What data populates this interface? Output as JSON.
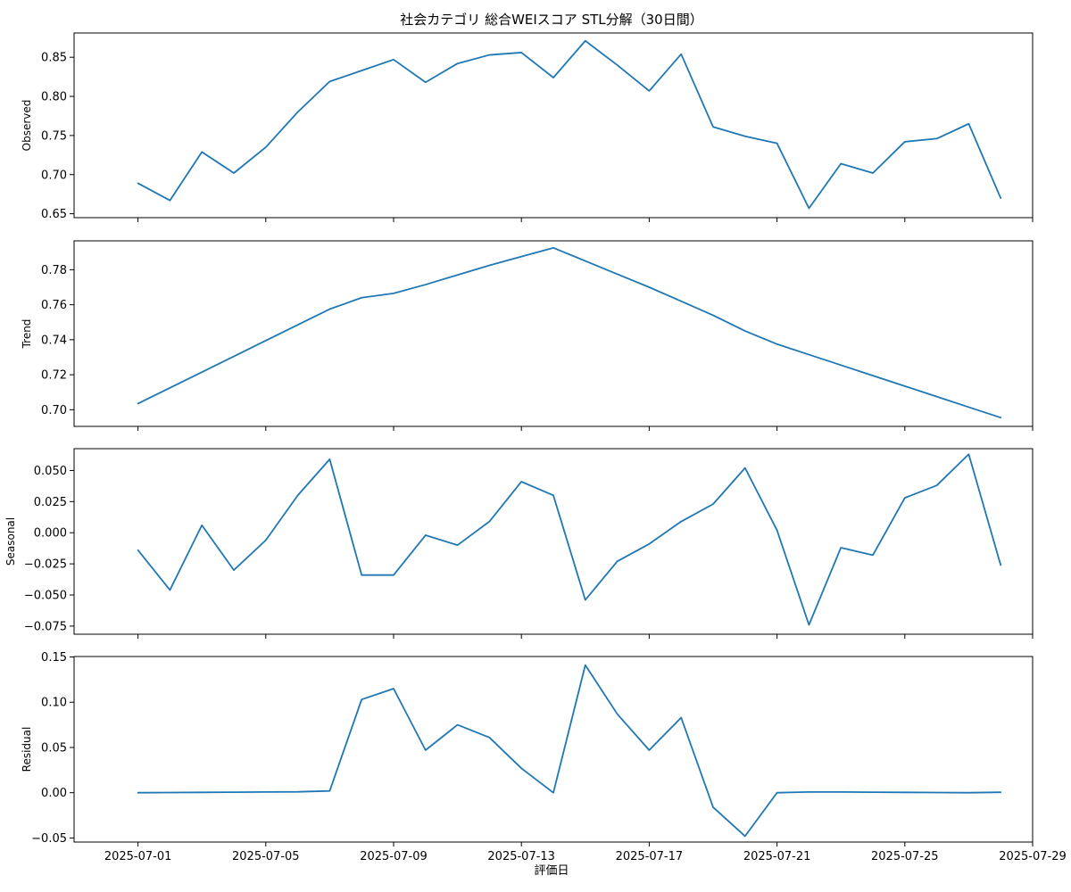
{
  "chart_data": {
    "type": "line",
    "title": "社会カテゴリ 総合WEIスコア STL分解（30日間）",
    "xlabel": "評価日",
    "x_tick_labels": [
      "2025-07-01",
      "2025-07-05",
      "2025-07-09",
      "2025-07-13",
      "2025-07-17",
      "2025-07-21",
      "2025-07-25",
      "2025-07-29"
    ],
    "x_tick_dates": [
      "2025-07-01",
      "2025-07-05",
      "2025-07-09",
      "2025-07-13",
      "2025-07-17",
      "2025-07-21",
      "2025-07-25",
      "2025-07-29"
    ],
    "x_range": [
      "2025-06-29",
      "2025-07-29"
    ],
    "dates": [
      "2025-07-01",
      "2025-07-02",
      "2025-07-03",
      "2025-07-04",
      "2025-07-05",
      "2025-07-06",
      "2025-07-07",
      "2025-07-08",
      "2025-07-09",
      "2025-07-10",
      "2025-07-11",
      "2025-07-12",
      "2025-07-13",
      "2025-07-14",
      "2025-07-15",
      "2025-07-16",
      "2025-07-17",
      "2025-07-18",
      "2025-07-19",
      "2025-07-20",
      "2025-07-21",
      "2025-07-22",
      "2025-07-23",
      "2025-07-24",
      "2025-07-25",
      "2025-07-26",
      "2025-07-27",
      "2025-07-28"
    ],
    "color": "#1f77b4",
    "grid": false,
    "panels": [
      {
        "ylabel": "Observed",
        "ylim": [
          0.645,
          0.881
        ],
        "y_ticks": [
          0.65,
          0.7,
          0.75,
          0.8,
          0.85
        ],
        "y_tick_labels": [
          "0.65",
          "0.70",
          "0.75",
          "0.80",
          "0.85"
        ],
        "values": [
          0.689,
          0.667,
          0.729,
          0.702,
          0.735,
          0.78,
          0.819,
          0.833,
          0.847,
          0.818,
          0.842,
          0.853,
          0.856,
          0.824,
          0.871,
          0.84,
          0.807,
          0.854,
          0.761,
          0.749,
          0.74,
          0.657,
          0.714,
          0.702,
          0.742,
          0.746,
          0.765,
          0.67
        ]
      },
      {
        "ylabel": "Trend",
        "ylim": [
          0.6905,
          0.7965
        ],
        "y_ticks": [
          0.7,
          0.72,
          0.74,
          0.76,
          0.78
        ],
        "y_tick_labels": [
          "0.70",
          "0.72",
          "0.74",
          "0.76",
          "0.78"
        ],
        "values": [
          0.7035,
          0.7125,
          0.7215,
          0.7305,
          0.7395,
          0.7485,
          0.7575,
          0.764,
          0.7665,
          0.7715,
          0.777,
          0.7825,
          0.7875,
          0.7925,
          0.785,
          0.7775,
          0.77,
          0.762,
          0.754,
          0.745,
          0.7375,
          0.7315,
          0.7255,
          0.7195,
          0.7135,
          0.7075,
          0.7015,
          0.6955
        ]
      },
      {
        "ylabel": "Seasonal",
        "ylim": [
          -0.0815,
          0.0675
        ],
        "y_ticks": [
          -0.075,
          -0.05,
          -0.025,
          0.0,
          0.025,
          0.05
        ],
        "y_tick_labels": [
          "−0.075",
          "−0.050",
          "−0.025",
          "0.000",
          "0.025",
          "0.050"
        ],
        "values": [
          -0.014,
          -0.046,
          0.006,
          -0.03,
          -0.006,
          0.03,
          0.059,
          -0.034,
          -0.034,
          -0.002,
          -0.01,
          0.009,
          0.041,
          0.03,
          -0.054,
          -0.023,
          -0.009,
          0.009,
          0.023,
          0.052,
          0.002,
          -0.074,
          -0.012,
          -0.018,
          0.028,
          0.038,
          0.063,
          -0.026
        ]
      },
      {
        "ylabel": "Residual",
        "ylim": [
          -0.0545,
          0.1505
        ],
        "y_ticks": [
          -0.05,
          0.0,
          0.05,
          0.1,
          0.15
        ],
        "y_tick_labels": [
          "−0.05",
          "0.00",
          "0.05",
          "0.10",
          "0.15"
        ],
        "values": [
          0.0,
          0.0002,
          0.0004,
          0.0006,
          0.0008,
          0.001,
          0.002,
          0.103,
          0.115,
          0.047,
          0.075,
          0.061,
          0.027,
          0.0,
          0.141,
          0.087,
          0.047,
          0.083,
          -0.016,
          -0.048,
          0.0,
          0.0008,
          0.0008,
          0.0006,
          0.0004,
          0.0002,
          0.0,
          0.0005
        ]
      }
    ]
  }
}
